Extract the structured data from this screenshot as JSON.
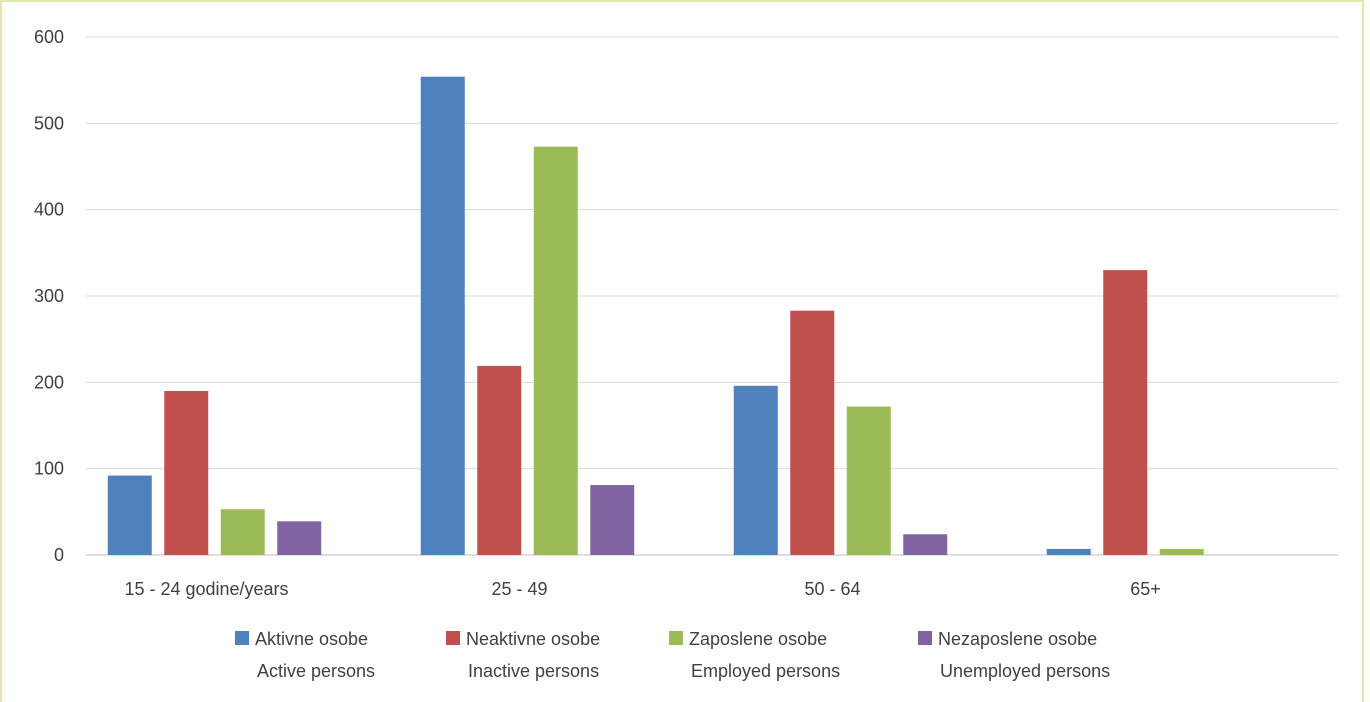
{
  "chart_data": {
    "type": "bar",
    "categories": [
      "15 - 24 godine/years",
      "25 - 49",
      "50 - 64",
      "65+"
    ],
    "series": [
      {
        "name": "Aktivne osobe",
        "name_en": "Active persons",
        "color": "#4f81bd",
        "values": [
          92,
          554,
          196,
          7
        ]
      },
      {
        "name": "Neaktivne osobe",
        "name_en": "Inactive persons",
        "color": "#c0504d",
        "values": [
          190,
          219,
          283,
          330
        ]
      },
      {
        "name": "Zaposlene osobe",
        "name_en": "Employed persons",
        "color": "#9bbb59",
        "values": [
          53,
          473,
          172,
          7
        ]
      },
      {
        "name": "Nezaposlene osobe",
        "name_en": "Unemployed persons",
        "color": "#8064a2",
        "values": [
          39,
          81,
          24,
          null
        ]
      }
    ],
    "y_ticks": [
      0,
      100,
      200,
      300,
      400,
      500,
      600
    ],
    "ylim": [
      0,
      600
    ],
    "grid": true,
    "legend_position": "bottom",
    "title": "",
    "xlabel": "",
    "ylabel": ""
  },
  "colors": {
    "grid": "#d9d9d9",
    "axis": "#bfbfbf",
    "text": "#404040",
    "frame": "#e7e6b0"
  }
}
